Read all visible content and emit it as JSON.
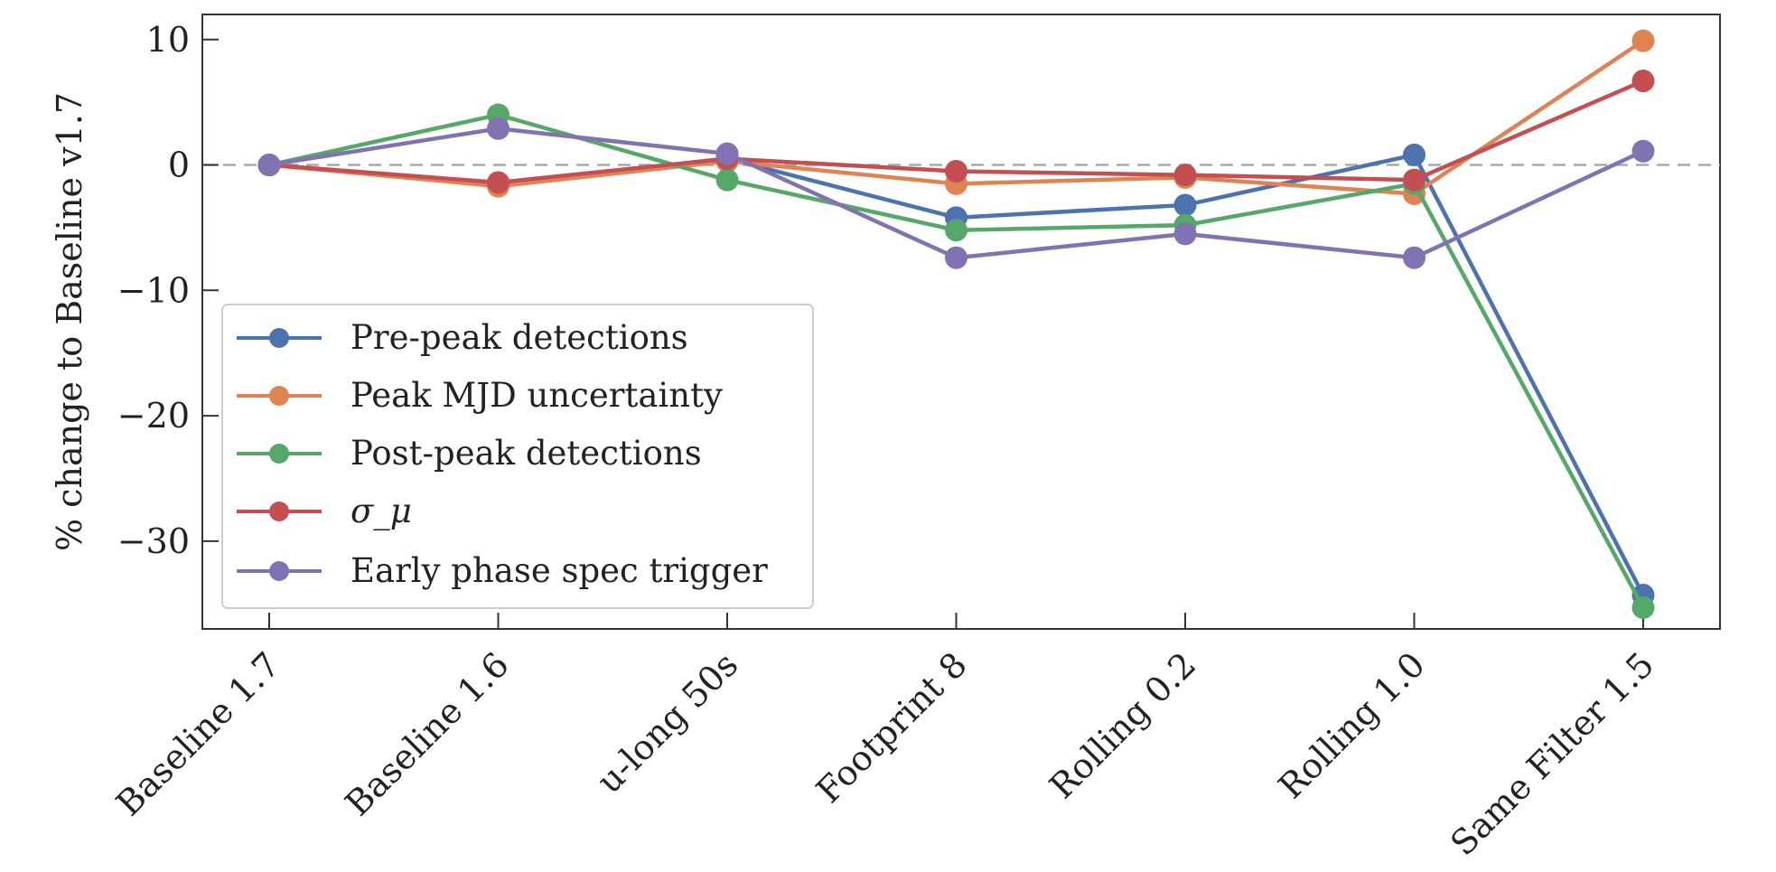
{
  "chart_data": {
    "type": "line",
    "ylabel": "% change to Baseline v1.7",
    "xlabel": "",
    "title": "",
    "categories": [
      "Baseline 1.7",
      "Baseline 1.6",
      "u-long 50s",
      "Footprint 8",
      "Rolling 0.2",
      "Rolling 1.0",
      "Same Filter 1.5"
    ],
    "ylim": [
      -37,
      12
    ],
    "yticks": [
      10,
      0,
      -10,
      -20,
      -30
    ],
    "reference_line": 0,
    "legend_position": "lower-left",
    "grid": false,
    "series": [
      {
        "name": "Pre-peak detections",
        "color": "#4c72b0",
        "values": [
          0,
          -1.5,
          0.5,
          -4.2,
          -3.2,
          0.8,
          -34.3
        ]
      },
      {
        "name": "Peak MJD uncertainty",
        "color": "#dd8452",
        "values": [
          0,
          -1.7,
          0.3,
          -1.5,
          -1.0,
          -2.3,
          9.9
        ]
      },
      {
        "name": "Post-peak detections",
        "color": "#55a868",
        "values": [
          0,
          4.0,
          -1.2,
          -5.2,
          -4.8,
          -1.5,
          -35.3
        ]
      },
      {
        "name": "σ_μ",
        "color": "#c44e52",
        "values": [
          0,
          -1.4,
          0.5,
          -0.5,
          -0.8,
          -1.2,
          6.7
        ]
      },
      {
        "name": "Early phase spec trigger",
        "color": "#8172b3",
        "values": [
          0,
          2.9,
          0.9,
          -7.4,
          -5.5,
          -7.4,
          1.1
        ]
      }
    ]
  }
}
